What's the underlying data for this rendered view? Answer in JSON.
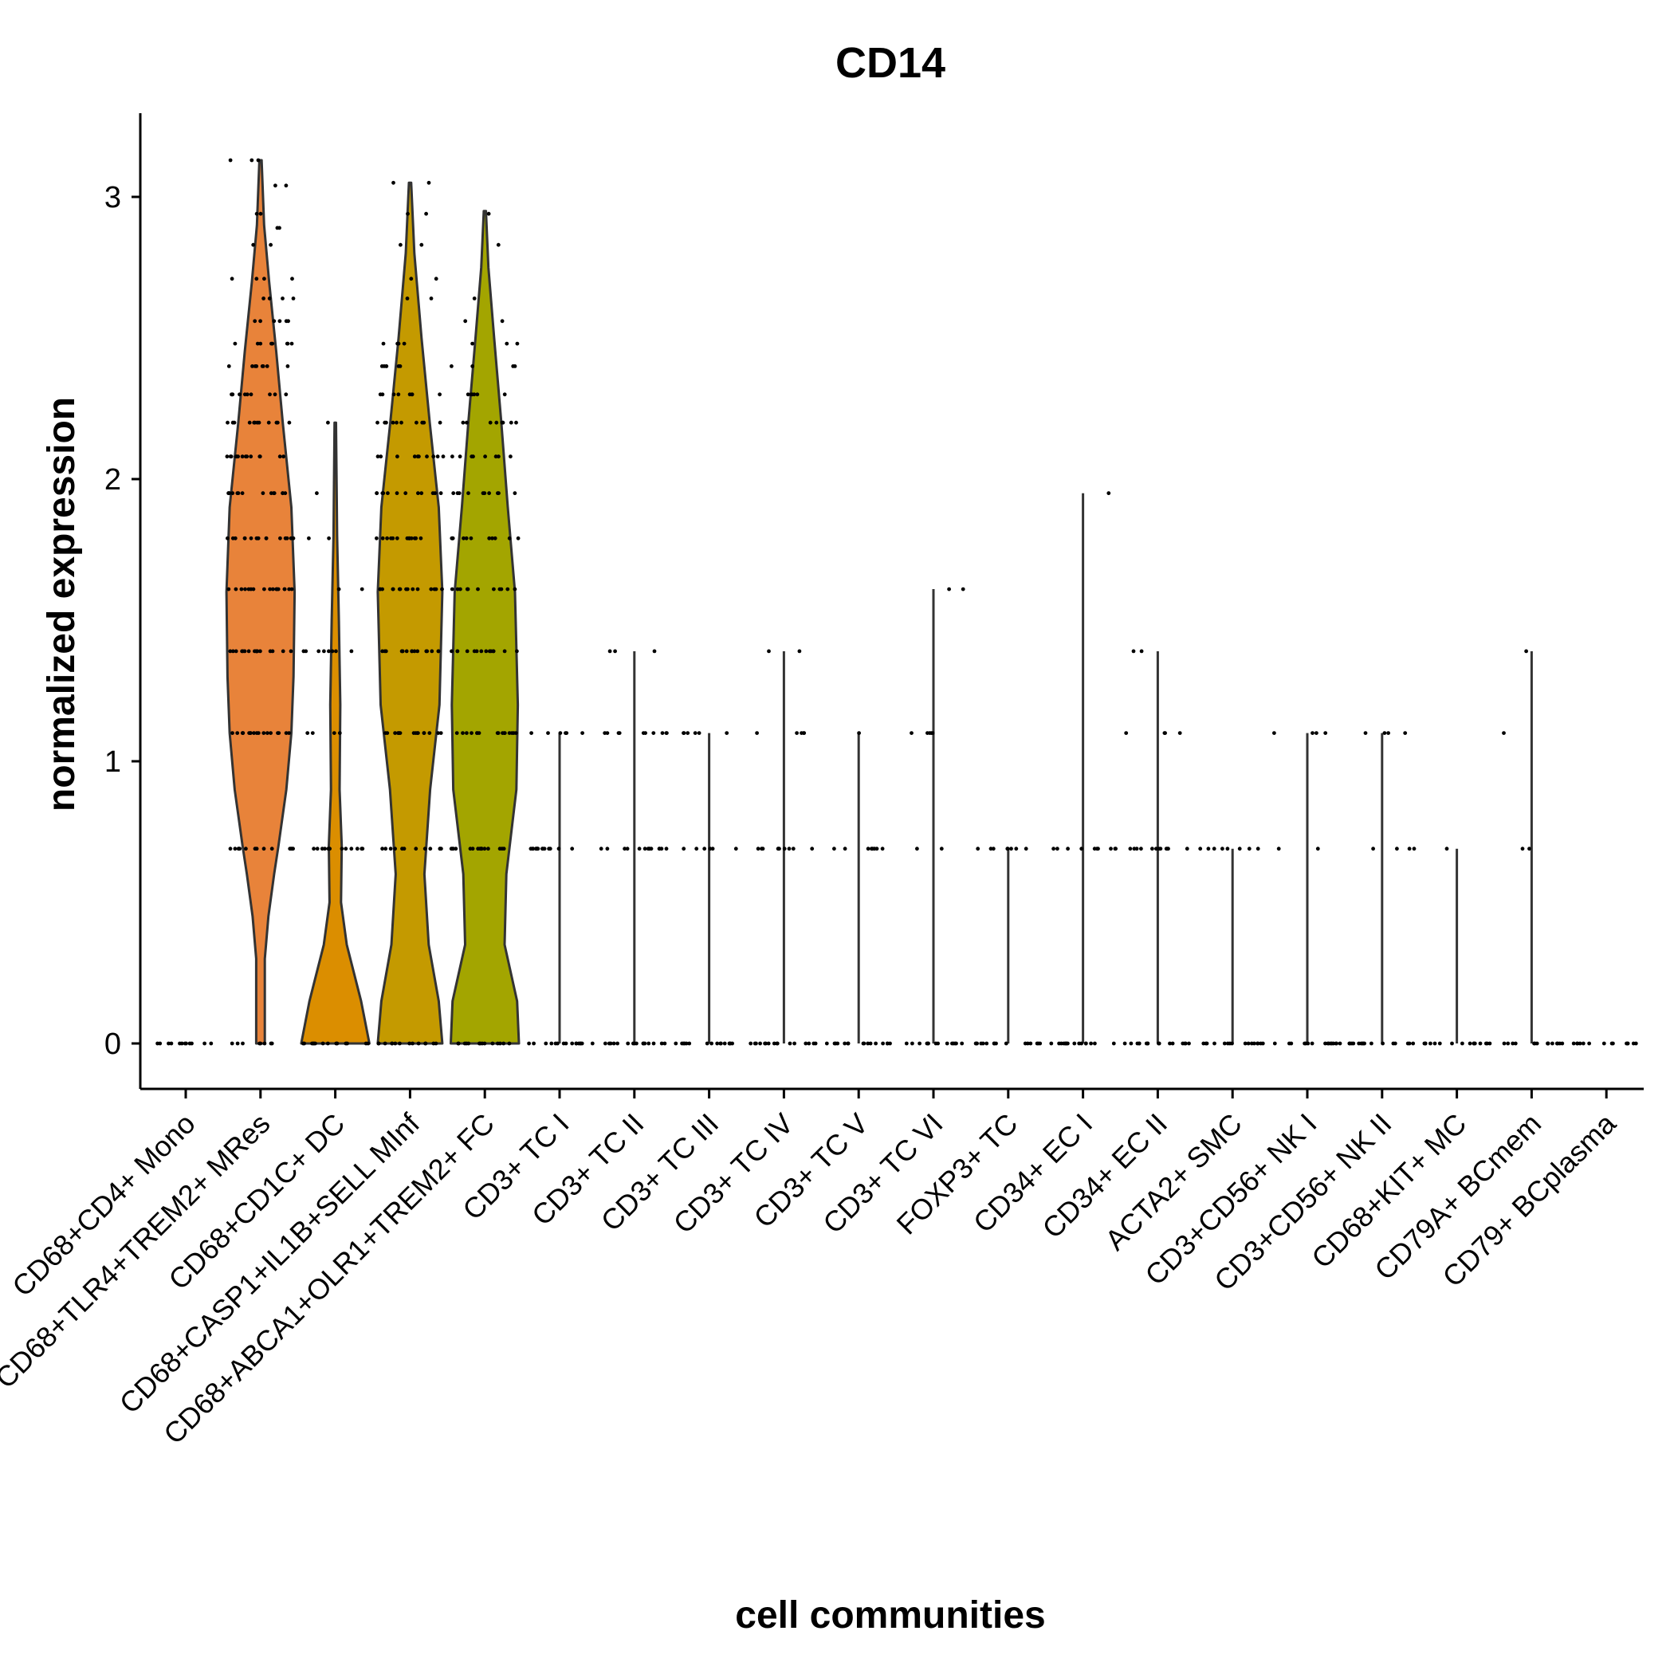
{
  "chart_data": {
    "type": "violin",
    "title": "CD14",
    "xlabel": "cell communities",
    "ylabel": "normalized expression",
    "ylim": [
      -0.16,
      3.28
    ],
    "yticks": [
      0,
      1,
      2,
      3
    ],
    "grid": false,
    "legend": "none",
    "categories": [
      "CD68+CD4+ Mono",
      "CD68+TLR4+TREM2+ MRes",
      "CD68+CD1C+ DC",
      "CD68+CASP1+IL1B+SELL MInf",
      "CD68+ABCA1+OLR1+TREM2+ FC",
      "CD3+ TC I",
      "CD3+ TC II",
      "CD3+ TC III",
      "CD3+ TC IV",
      "CD3+ TC V",
      "CD3+ TC VI",
      "FOXP3+ TC",
      "CD34+ EC I",
      "CD34+ EC II",
      "ACTA2+ SMC",
      "CD3+CD56+ NK I",
      "CD3+CD56+ NK II",
      "CD68+KIT+ MC",
      "CD79A+ BCmem",
      "CD79+ BCplasma"
    ],
    "colors": [
      "#F8766D",
      "#E8833A",
      "#DB8E00",
      "#C49A00",
      "#A3A500"
    ],
    "violins": [
      {
        "max": 0.0,
        "fill": null,
        "profile": []
      },
      {
        "max": 3.13,
        "fill": "#E8833A",
        "profile": [
          [
            0,
            0.12
          ],
          [
            0.1,
            0.12
          ],
          [
            0.3,
            0.12
          ],
          [
            0.45,
            0.22
          ],
          [
            0.6,
            0.38
          ],
          [
            0.7,
            0.5
          ],
          [
            0.9,
            0.72
          ],
          [
            1.1,
            0.86
          ],
          [
            1.3,
            0.92
          ],
          [
            1.6,
            0.95
          ],
          [
            1.9,
            0.86
          ],
          [
            2.2,
            0.62
          ],
          [
            2.45,
            0.44
          ],
          [
            2.7,
            0.24
          ],
          [
            2.9,
            0.1
          ],
          [
            3.13,
            0.03
          ]
        ]
      },
      {
        "max": 2.2,
        "fill": "#DB8E00",
        "profile": [
          [
            0,
            0.95
          ],
          [
            0.15,
            0.72
          ],
          [
            0.35,
            0.32
          ],
          [
            0.5,
            0.16
          ],
          [
            0.7,
            0.18
          ],
          [
            0.9,
            0.12
          ],
          [
            1.2,
            0.14
          ],
          [
            1.5,
            0.1
          ],
          [
            1.8,
            0.05
          ],
          [
            2.2,
            0.02
          ]
        ]
      },
      {
        "max": 3.05,
        "fill": "#C49A00",
        "profile": [
          [
            0,
            0.9
          ],
          [
            0.15,
            0.8
          ],
          [
            0.35,
            0.52
          ],
          [
            0.6,
            0.4
          ],
          [
            0.9,
            0.56
          ],
          [
            1.2,
            0.82
          ],
          [
            1.6,
            0.9
          ],
          [
            1.9,
            0.8
          ],
          [
            2.2,
            0.55
          ],
          [
            2.5,
            0.32
          ],
          [
            2.8,
            0.12
          ],
          [
            3.05,
            0.03
          ]
        ]
      },
      {
        "max": 2.95,
        "fill": "#A3A500",
        "profile": [
          [
            0,
            0.95
          ],
          [
            0.15,
            0.9
          ],
          [
            0.35,
            0.55
          ],
          [
            0.6,
            0.6
          ],
          [
            0.9,
            0.88
          ],
          [
            1.2,
            0.92
          ],
          [
            1.6,
            0.84
          ],
          [
            1.9,
            0.64
          ],
          [
            2.2,
            0.46
          ],
          [
            2.5,
            0.26
          ],
          [
            2.75,
            0.1
          ],
          [
            2.95,
            0.03
          ]
        ]
      },
      {
        "max": 1.1,
        "fill": null,
        "profile": []
      },
      {
        "max": 1.39,
        "fill": null,
        "profile": []
      },
      {
        "max": 1.1,
        "fill": null,
        "profile": []
      },
      {
        "max": 1.39,
        "fill": null,
        "profile": []
      },
      {
        "max": 1.1,
        "fill": null,
        "profile": []
      },
      {
        "max": 1.61,
        "fill": null,
        "profile": []
      },
      {
        "max": 0.69,
        "fill": null,
        "profile": []
      },
      {
        "max": 1.95,
        "fill": null,
        "profile": []
      },
      {
        "max": 1.39,
        "fill": null,
        "profile": []
      },
      {
        "max": 0.69,
        "fill": null,
        "profile": []
      },
      {
        "max": 1.1,
        "fill": null,
        "profile": []
      },
      {
        "max": 1.1,
        "fill": null,
        "profile": []
      },
      {
        "max": 0.69,
        "fill": null,
        "profile": []
      },
      {
        "max": 1.39,
        "fill": null,
        "profile": []
      },
      {
        "max": 0.0,
        "fill": null,
        "profile": []
      }
    ],
    "points": [
      {
        "levels": [
          [
            0,
            12
          ]
        ]
      },
      {
        "levels": [
          [
            0,
            8
          ],
          [
            0.69,
            14
          ],
          [
            1.1,
            18
          ],
          [
            1.39,
            18
          ],
          [
            1.61,
            18
          ],
          [
            1.79,
            16
          ],
          [
            1.95,
            14
          ],
          [
            2.08,
            14
          ],
          [
            2.2,
            12
          ],
          [
            2.3,
            10
          ],
          [
            2.4,
            8
          ],
          [
            2.48,
            8
          ],
          [
            2.56,
            6
          ],
          [
            2.64,
            4
          ],
          [
            2.71,
            4
          ],
          [
            2.83,
            2
          ],
          [
            2.89,
            2
          ],
          [
            2.94,
            2
          ],
          [
            3.04,
            2
          ],
          [
            3.13,
            3
          ]
        ]
      },
      {
        "levels": [
          [
            0,
            14
          ],
          [
            0.69,
            12
          ],
          [
            1.1,
            4
          ],
          [
            1.39,
            8
          ],
          [
            1.61,
            2
          ],
          [
            1.79,
            2
          ],
          [
            1.95,
            1
          ],
          [
            2.2,
            1
          ]
        ]
      },
      {
        "levels": [
          [
            0,
            14
          ],
          [
            0.69,
            12
          ],
          [
            1.1,
            16
          ],
          [
            1.39,
            16
          ],
          [
            1.61,
            16
          ],
          [
            1.79,
            14
          ],
          [
            1.95,
            12
          ],
          [
            2.08,
            10
          ],
          [
            2.2,
            10
          ],
          [
            2.3,
            8
          ],
          [
            2.4,
            6
          ],
          [
            2.48,
            4
          ],
          [
            2.64,
            2
          ],
          [
            2.71,
            2
          ],
          [
            2.83,
            2
          ],
          [
            2.94,
            2
          ],
          [
            3.05,
            2
          ]
        ]
      },
      {
        "levels": [
          [
            0,
            14
          ],
          [
            0.69,
            16
          ],
          [
            1.1,
            16
          ],
          [
            1.39,
            14
          ],
          [
            1.61,
            12
          ],
          [
            1.79,
            12
          ],
          [
            1.95,
            10
          ],
          [
            2.08,
            8
          ],
          [
            2.2,
            8
          ],
          [
            2.3,
            6
          ],
          [
            2.4,
            4
          ],
          [
            2.48,
            3
          ],
          [
            2.56,
            2
          ],
          [
            2.64,
            1
          ],
          [
            2.83,
            1
          ],
          [
            2.94,
            1
          ]
        ]
      },
      {
        "levels": [
          [
            0,
            16
          ],
          [
            0.69,
            16
          ],
          [
            1.1,
            6
          ]
        ]
      },
      {
        "levels": [
          [
            0,
            16
          ],
          [
            0.69,
            14
          ],
          [
            1.1,
            10
          ],
          [
            1.39,
            3
          ]
        ]
      },
      {
        "levels": [
          [
            0,
            16
          ],
          [
            0.69,
            6
          ],
          [
            1.1,
            6
          ]
        ]
      },
      {
        "levels": [
          [
            0,
            16
          ],
          [
            0.69,
            10
          ],
          [
            1.1,
            5
          ],
          [
            1.39,
            2
          ]
        ]
      },
      {
        "levels": [
          [
            0,
            16
          ],
          [
            0.69,
            8
          ],
          [
            1.1,
            1
          ]
        ]
      },
      {
        "levels": [
          [
            0,
            14
          ],
          [
            0.69,
            2
          ],
          [
            1.1,
            5
          ],
          [
            1.61,
            2
          ]
        ]
      },
      {
        "levels": [
          [
            0,
            16
          ],
          [
            0.69,
            8
          ]
        ]
      },
      {
        "levels": [
          [
            0,
            16
          ],
          [
            0.69,
            10
          ],
          [
            1.95,
            1
          ]
        ]
      },
      {
        "levels": [
          [
            0,
            16
          ],
          [
            0.69,
            12
          ],
          [
            1.1,
            4
          ],
          [
            1.39,
            2
          ]
        ]
      },
      {
        "levels": [
          [
            0,
            16
          ],
          [
            0.69,
            8
          ]
        ]
      },
      {
        "levels": [
          [
            0,
            16
          ],
          [
            0.69,
            2
          ],
          [
            1.1,
            4
          ]
        ]
      },
      {
        "levels": [
          [
            0,
            16
          ],
          [
            0.69,
            4
          ],
          [
            1.1,
            4
          ]
        ]
      },
      {
        "levels": [
          [
            0,
            16
          ],
          [
            0.69,
            1
          ]
        ]
      },
      {
        "levels": [
          [
            0,
            16
          ],
          [
            0.69,
            2
          ],
          [
            1.1,
            1
          ],
          [
            1.39,
            1
          ]
        ]
      },
      {
        "levels": [
          [
            0,
            14
          ]
        ]
      }
    ]
  }
}
